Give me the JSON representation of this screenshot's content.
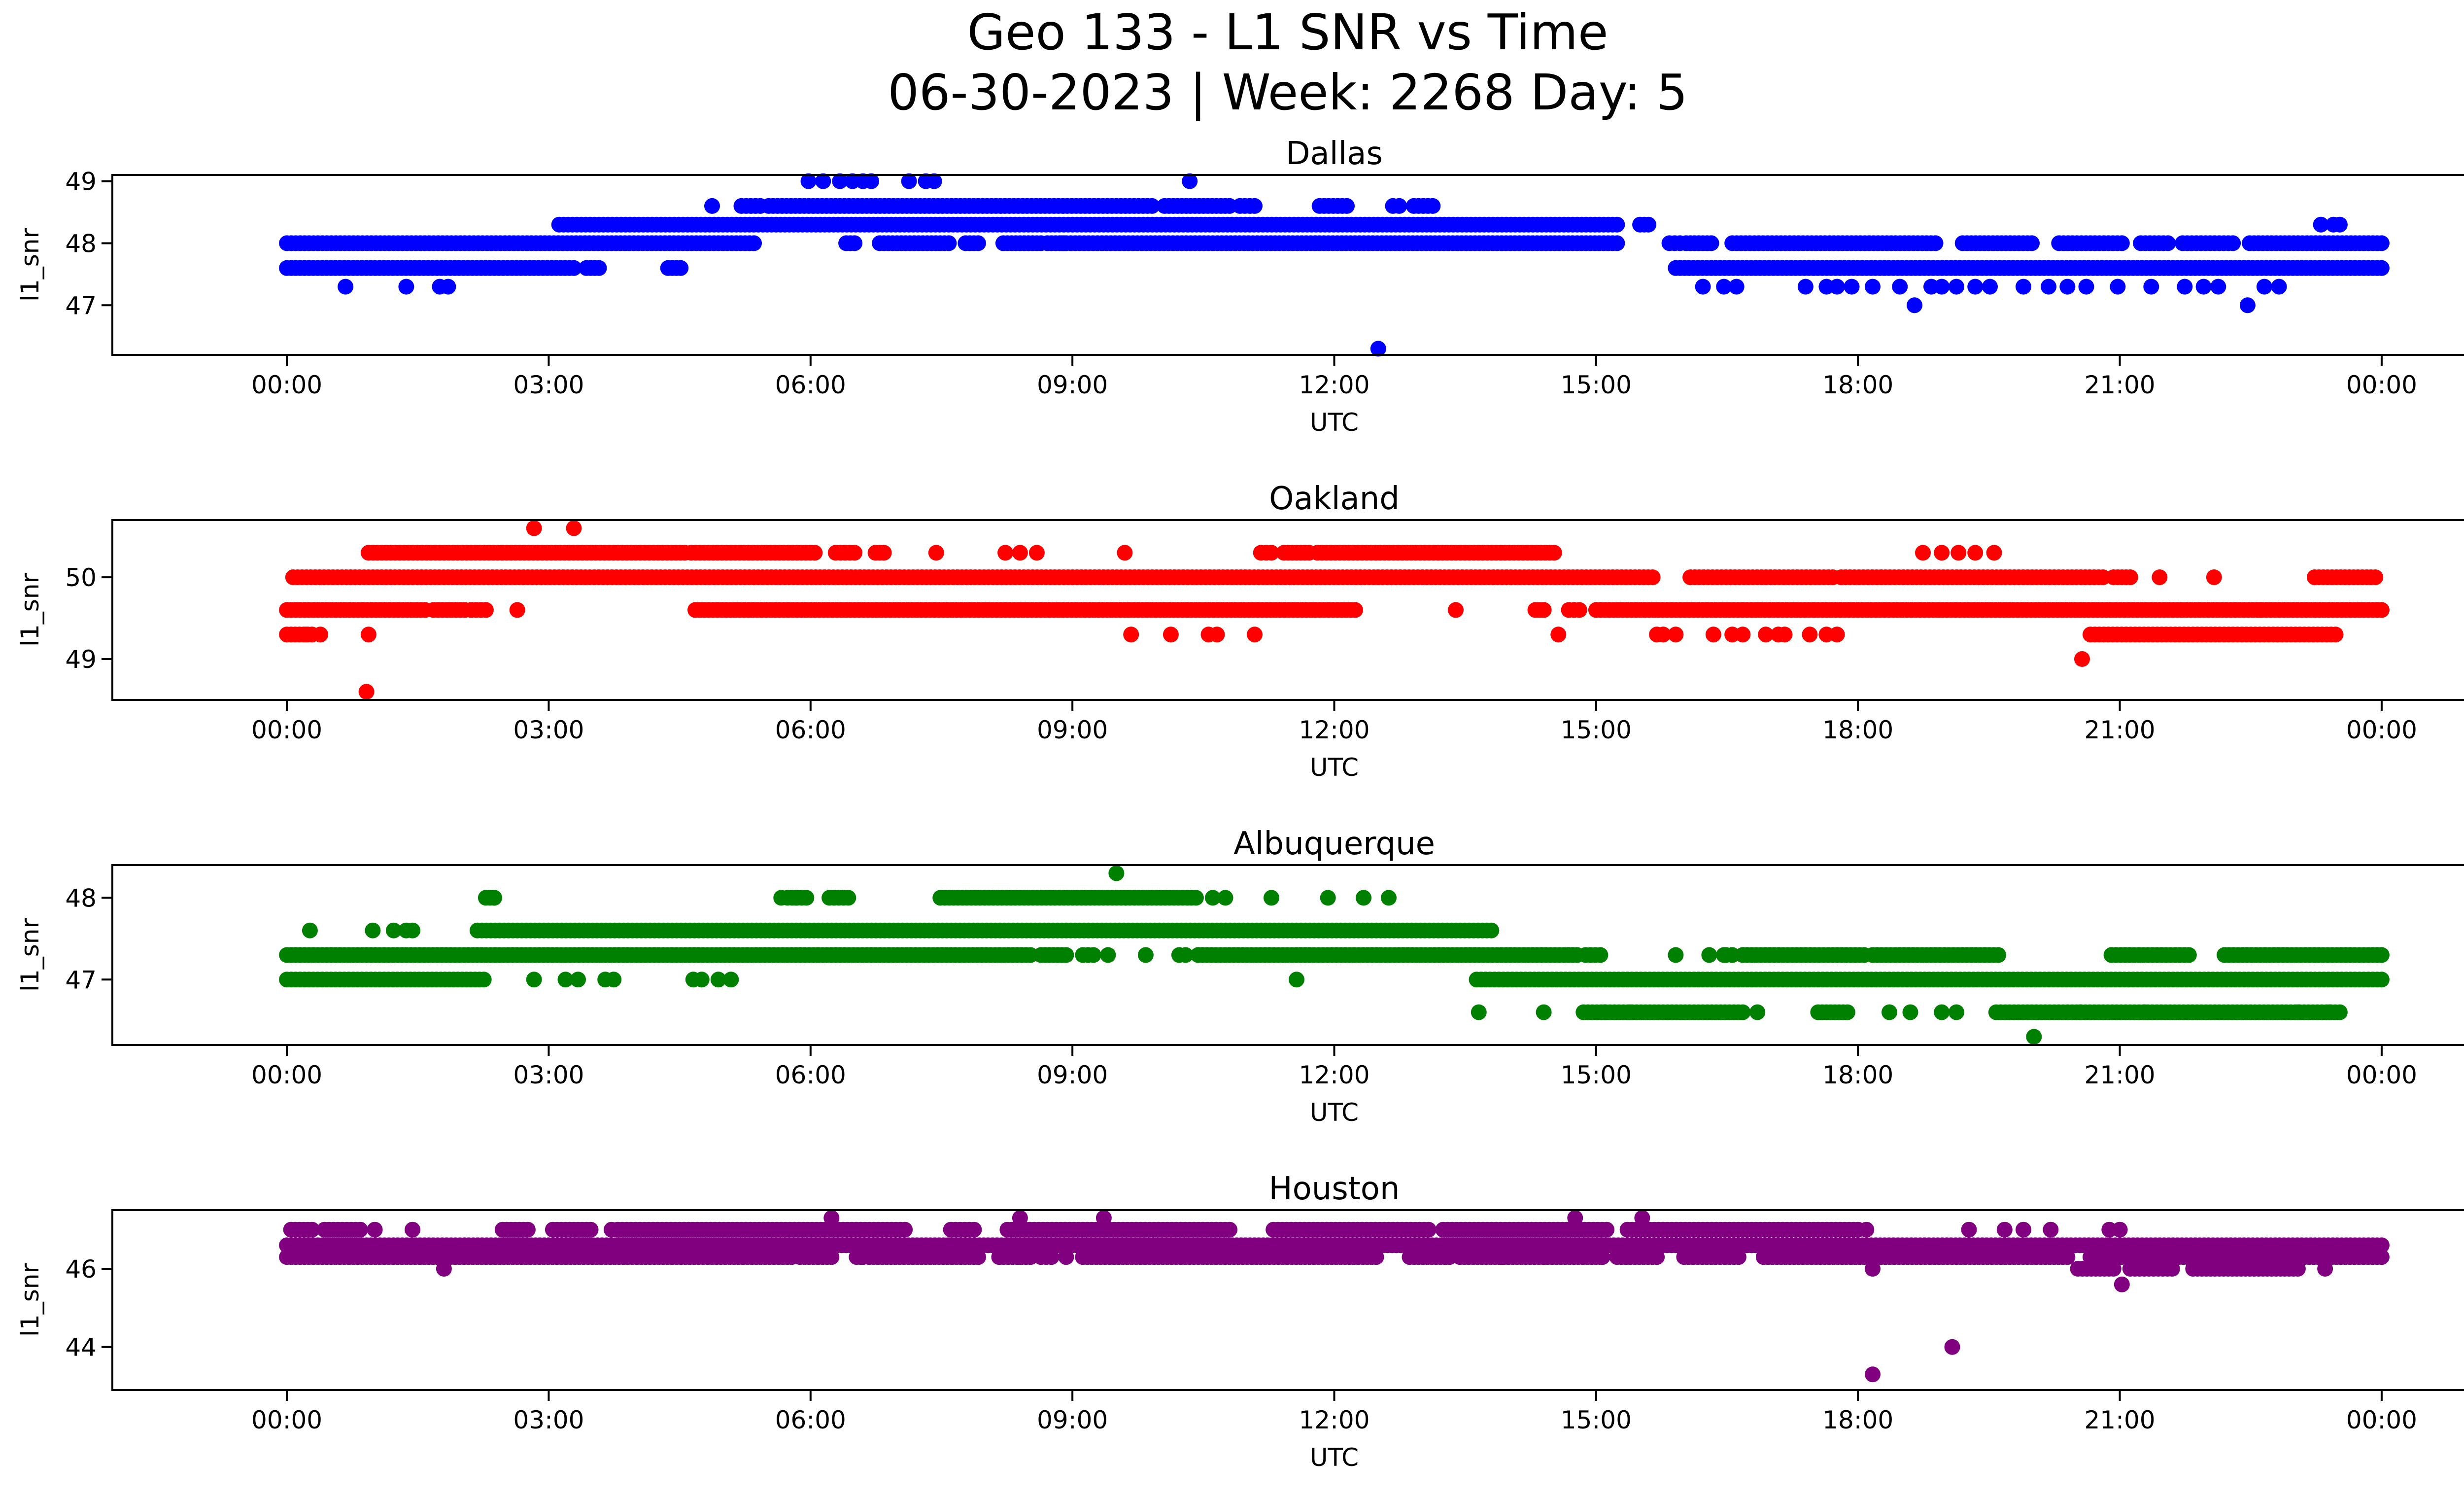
{
  "figure": {
    "title_line1": "Geo 133 - L1 SNR vs Time",
    "title_line2": "06-30-2023 | Week: 2268 Day: 5"
  },
  "x_tick_labels": [
    "00:00",
    "03:00",
    "06:00",
    "09:00",
    "12:00",
    "15:00",
    "18:00",
    "21:00",
    "00:00"
  ],
  "chart_data": [
    {
      "type": "scatter",
      "title": "Dallas",
      "xlabel": "UTC",
      "ylabel": "l1_snr",
      "color": "#0000ff",
      "xlim": [
        -0.0833,
        1.0833
      ],
      "x_unit": "fraction of day 2023-06-30 (0 = 00:00 UTC, 1 = 00:00 next day)",
      "ylim": [
        46.2,
        49.1
      ],
      "yticks": [
        47,
        48,
        49
      ],
      "bands": [
        {
          "y": 47.6,
          "segments": [
            [
              0.0,
              0.137
            ],
            [
              0.143,
              0.149
            ],
            [
              0.182,
              0.188
            ],
            [
              0.663,
              1.0
            ]
          ]
        },
        {
          "y": 48.0,
          "segments": [
            [
              0.0,
              0.223
            ],
            [
              0.267,
              0.271
            ],
            [
              0.283,
              0.316
            ],
            [
              0.324,
              0.33
            ],
            [
              0.342,
              0.36
            ],
            [
              0.363,
              0.371
            ],
            [
              0.37,
              0.635
            ],
            [
              0.66,
              0.665
            ],
            [
              0.668,
              0.68
            ],
            [
              0.69,
              0.787
            ],
            [
              0.8,
              0.833
            ],
            [
              0.846,
              0.876
            ],
            [
              0.885,
              0.898
            ],
            [
              0.905,
              0.929
            ],
            [
              0.937,
              1.0
            ]
          ]
        },
        {
          "y": 48.3,
          "segments": [
            [
              0.13,
              0.635
            ],
            [
              0.646,
              0.65
            ]
          ]
        },
        {
          "y": 48.6,
          "segments": [
            [
              0.217,
              0.226
            ],
            [
              0.23,
              0.413
            ],
            [
              0.419,
              0.45
            ],
            [
              0.455,
              0.462
            ],
            [
              0.493,
              0.506
            ],
            [
              0.528,
              0.531
            ],
            [
              0.538,
              0.547
            ]
          ]
        }
      ],
      "points": [
        [
          0.028,
          47.3
        ],
        [
          0.057,
          47.3
        ],
        [
          0.073,
          47.3
        ],
        [
          0.077,
          47.3
        ],
        [
          0.203,
          48.6
        ],
        [
          0.249,
          49.0
        ],
        [
          0.256,
          49.0
        ],
        [
          0.264,
          49.0
        ],
        [
          0.27,
          49.0
        ],
        [
          0.275,
          49.0
        ],
        [
          0.279,
          49.0
        ],
        [
          0.297,
          49.0
        ],
        [
          0.305,
          49.0
        ],
        [
          0.309,
          49.0
        ],
        [
          0.431,
          49.0
        ],
        [
          0.521,
          46.3
        ],
        [
          0.676,
          47.3
        ],
        [
          0.686,
          47.3
        ],
        [
          0.692,
          47.3
        ],
        [
          0.725,
          47.3
        ],
        [
          0.735,
          47.3
        ],
        [
          0.74,
          47.3
        ],
        [
          0.747,
          47.3
        ],
        [
          0.757,
          47.3
        ],
        [
          0.77,
          47.3
        ],
        [
          0.777,
          47.0
        ],
        [
          0.785,
          47.3
        ],
        [
          0.79,
          47.3
        ],
        [
          0.797,
          47.3
        ],
        [
          0.806,
          47.3
        ],
        [
          0.813,
          47.3
        ],
        [
          0.829,
          47.3
        ],
        [
          0.841,
          47.3
        ],
        [
          0.85,
          47.3
        ],
        [
          0.859,
          47.3
        ],
        [
          0.874,
          47.3
        ],
        [
          0.89,
          47.3
        ],
        [
          0.906,
          47.3
        ],
        [
          0.915,
          47.3
        ],
        [
          0.922,
          47.3
        ],
        [
          0.936,
          47.0
        ],
        [
          0.944,
          47.3
        ],
        [
          0.951,
          47.3
        ],
        [
          0.971,
          48.3
        ],
        [
          0.977,
          48.3
        ],
        [
          0.98,
          48.3
        ]
      ]
    },
    {
      "type": "scatter",
      "title": "Oakland",
      "xlabel": "UTC",
      "ylabel": "l1_snr",
      "color": "#ff0000",
      "xlim": [
        -0.0833,
        1.0833
      ],
      "x_unit": "fraction of day 2023-06-30 (0 = 00:00 UTC, 1 = 00:00 next day)",
      "ylim": [
        48.5,
        50.7
      ],
      "yticks": [
        49,
        50
      ],
      "bands": [
        {
          "y": 49.3,
          "segments": [
            [
              0.0,
              0.012
            ],
            [
              0.861,
              0.978
            ]
          ]
        },
        {
          "y": 49.6,
          "segments": [
            [
              0.0,
              0.066
            ],
            [
              0.07,
              0.085
            ],
            [
              0.088,
              0.095
            ],
            [
              0.195,
              0.51
            ],
            [
              0.596,
              0.6
            ],
            [
              0.612,
              0.617
            ],
            [
              0.625,
              1.0
            ]
          ]
        },
        {
          "y": 50.0,
          "segments": [
            [
              0.003,
              0.652
            ],
            [
              0.67,
              0.738
            ],
            [
              0.742,
              0.867
            ],
            [
              0.872,
              0.88
            ],
            [
              0.968,
              0.997
            ]
          ]
        },
        {
          "y": 50.3,
          "segments": [
            [
              0.039,
              0.19
            ],
            [
              0.193,
              0.252
            ],
            [
              0.262,
              0.271
            ],
            [
              0.281,
              0.285
            ],
            [
              0.465,
              0.47
            ],
            [
              0.476,
              0.488
            ],
            [
              0.492,
              0.605
            ]
          ]
        }
      ],
      "points": [
        [
          0.009,
          49.3
        ],
        [
          0.016,
          49.3
        ],
        [
          0.038,
          48.6
        ],
        [
          0.039,
          49.3
        ],
        [
          0.11,
          49.6
        ],
        [
          0.118,
          50.6
        ],
        [
          0.137,
          50.6
        ],
        [
          0.31,
          50.3
        ],
        [
          0.343,
          50.3
        ],
        [
          0.35,
          50.3
        ],
        [
          0.358,
          50.3
        ],
        [
          0.4,
          50.3
        ],
        [
          0.403,
          49.3
        ],
        [
          0.422,
          49.3
        ],
        [
          0.44,
          49.3
        ],
        [
          0.444,
          49.3
        ],
        [
          0.462,
          49.3
        ],
        [
          0.558,
          49.6
        ],
        [
          0.6,
          49.6
        ],
        [
          0.607,
          49.3
        ],
        [
          0.654,
          49.3
        ],
        [
          0.657,
          49.3
        ],
        [
          0.663,
          49.3
        ],
        [
          0.681,
          49.3
        ],
        [
          0.69,
          49.3
        ],
        [
          0.695,
          49.3
        ],
        [
          0.706,
          49.3
        ],
        [
          0.712,
          49.3
        ],
        [
          0.715,
          49.3
        ],
        [
          0.727,
          49.3
        ],
        [
          0.735,
          49.3
        ],
        [
          0.74,
          49.3
        ],
        [
          0.781,
          50.3
        ],
        [
          0.79,
          50.3
        ],
        [
          0.798,
          50.3
        ],
        [
          0.806,
          50.3
        ],
        [
          0.815,
          50.3
        ],
        [
          0.857,
          49.0
        ],
        [
          0.894,
          50.0
        ],
        [
          0.92,
          50.0
        ],
        [
          0.942,
          49.6
        ]
      ]
    },
    {
      "type": "scatter",
      "title": "Albuquerque",
      "xlabel": "UTC",
      "ylabel": "l1_snr",
      "color": "#008000",
      "xlim": [
        -0.0833,
        1.0833
      ],
      "x_unit": "fraction of day 2023-06-30 (0 = 00:00 UTC, 1 = 00:00 next day)",
      "ylim": [
        46.2,
        48.4
      ],
      "yticks": [
        47,
        48
      ],
      "bands": [
        {
          "y": 47.0,
          "segments": [
            [
              0.0,
              0.057
            ],
            [
              0.059,
              0.094
            ],
            [
              0.568,
              1.0
            ]
          ]
        },
        {
          "y": 47.3,
          "segments": [
            [
              0.0,
              0.355
            ],
            [
              0.36,
              0.372
            ],
            [
              0.38,
              0.385
            ],
            [
              0.426,
              0.429
            ],
            [
              0.435,
              0.616
            ],
            [
              0.62,
              0.627
            ],
            [
              0.687,
              0.69
            ],
            [
              0.695,
              0.753
            ],
            [
              0.757,
              0.817
            ],
            [
              0.871,
              0.908
            ],
            [
              0.925,
              1.0
            ]
          ]
        },
        {
          "y": 47.6,
          "segments": [
            [
              0.091,
              0.575
            ]
          ]
        },
        {
          "y": 48.0,
          "segments": [
            [
              0.095,
              0.099
            ],
            [
              0.239,
              0.248
            ],
            [
              0.259,
              0.268
            ],
            [
              0.312,
              0.434
            ]
          ]
        },
        {
          "y": 46.6,
          "segments": [
            [
              0.619,
              0.695
            ],
            [
              0.731,
              0.745
            ],
            [
              0.816,
              0.98
            ]
          ]
        }
      ],
      "points": [
        [
          0.011,
          47.6
        ],
        [
          0.041,
          47.6
        ],
        [
          0.051,
          47.6
        ],
        [
          0.057,
          47.6
        ],
        [
          0.06,
          47.6
        ],
        [
          0.099,
          48.0
        ],
        [
          0.118,
          47.0
        ],
        [
          0.133,
          47.0
        ],
        [
          0.139,
          47.0
        ],
        [
          0.152,
          47.0
        ],
        [
          0.156,
          47.0
        ],
        [
          0.194,
          47.0
        ],
        [
          0.198,
          47.0
        ],
        [
          0.206,
          47.0
        ],
        [
          0.212,
          47.0
        ],
        [
          0.236,
          48.0
        ],
        [
          0.243,
          48.0
        ],
        [
          0.392,
          47.3
        ],
        [
          0.41,
          47.3
        ],
        [
          0.396,
          48.3
        ],
        [
          0.442,
          48.0
        ],
        [
          0.448,
          48.0
        ],
        [
          0.47,
          48.0
        ],
        [
          0.497,
          48.0
        ],
        [
          0.514,
          48.0
        ],
        [
          0.526,
          48.0
        ],
        [
          0.482,
          47.0
        ],
        [
          0.569,
          46.6
        ],
        [
          0.6,
          46.6
        ],
        [
          0.629,
          46.6
        ],
        [
          0.641,
          46.6
        ],
        [
          0.663,
          47.3
        ],
        [
          0.679,
          47.3
        ],
        [
          0.686,
          47.3
        ],
        [
          0.702,
          46.6
        ],
        [
          0.765,
          46.6
        ],
        [
          0.775,
          46.6
        ],
        [
          0.79,
          46.6
        ],
        [
          0.797,
          46.6
        ],
        [
          0.834,
          46.3
        ],
        [
          0.856,
          46.6
        ],
        [
          0.887,
          46.6
        ],
        [
          0.925,
          47.3
        ],
        [
          0.96,
          46.6
        ],
        [
          0.975,
          46.6
        ]
      ]
    },
    {
      "type": "scatter",
      "title": "Houston",
      "xlabel": "UTC",
      "ylabel": "l1_snr",
      "color": "#800080",
      "xlim": [
        -0.0833,
        1.0833
      ],
      "x_unit": "fraction of day 2023-06-30 (0 = 00:00 UTC, 1 = 00:00 next day)",
      "ylim": [
        42.9,
        47.5
      ],
      "yticks": [
        44,
        46
      ],
      "bands": [
        {
          "y": 46.3,
          "segments": [
            [
              0.0,
              0.241
            ],
            [
              0.245,
              0.26
            ],
            [
              0.272,
              0.274
            ],
            [
              0.278,
              0.33
            ],
            [
              0.34,
              0.355
            ],
            [
              0.36,
              0.365
            ],
            [
              0.38,
              0.52
            ],
            [
              0.536,
              0.555
            ],
            [
              0.56,
              0.627
            ],
            [
              0.635,
              0.654
            ],
            [
              0.667,
              0.68
            ],
            [
              0.682,
              0.693
            ],
            [
              0.705,
              0.757
            ],
            [
              0.761,
              0.85
            ],
            [
              0.861,
              0.958
            ],
            [
              0.961,
              1.0
            ]
          ]
        },
        {
          "y": 46.6,
          "segments": [
            [
              0.0,
              1.0
            ]
          ]
        },
        {
          "y": 46.0,
          "segments": [
            [
              0.855,
              0.872
            ],
            [
              0.88,
              0.9
            ],
            [
              0.91,
              0.96
            ]
          ]
        },
        {
          "y": 47.0,
          "segments": [
            [
              0.002,
              0.012
            ],
            [
              0.018,
              0.035
            ],
            [
              0.103,
              0.115
            ],
            [
              0.127,
              0.145
            ],
            [
              0.158,
              0.295
            ],
            [
              0.317,
              0.328
            ],
            [
              0.344,
              0.45
            ],
            [
              0.471,
              0.545
            ],
            [
              0.552,
              0.63
            ],
            [
              0.64,
              0.75
            ]
          ]
        }
      ],
      "points": [
        [
          0.042,
          47.0
        ],
        [
          0.06,
          47.0
        ],
        [
          0.075,
          46.0
        ],
        [
          0.155,
          47.0
        ],
        [
          0.26,
          47.3
        ],
        [
          0.275,
          46.3
        ],
        [
          0.33,
          46.3
        ],
        [
          0.349,
          46.3
        ],
        [
          0.35,
          47.3
        ],
        [
          0.372,
          46.3
        ],
        [
          0.39,
          47.3
        ],
        [
          0.553,
          46.3
        ],
        [
          0.58,
          46.3
        ],
        [
          0.6,
          46.3
        ],
        [
          0.615,
          47.3
        ],
        [
          0.628,
          46.3
        ],
        [
          0.647,
          47.3
        ],
        [
          0.754,
          47.0
        ],
        [
          0.757,
          46.0
        ],
        [
          0.757,
          43.3
        ],
        [
          0.795,
          44.0
        ],
        [
          0.803,
          47.0
        ],
        [
          0.82,
          47.0
        ],
        [
          0.829,
          47.0
        ],
        [
          0.842,
          47.0
        ],
        [
          0.87,
          47.0
        ],
        [
          0.875,
          47.0
        ],
        [
          0.876,
          45.6
        ],
        [
          0.973,
          46.0
        ]
      ]
    }
  ]
}
